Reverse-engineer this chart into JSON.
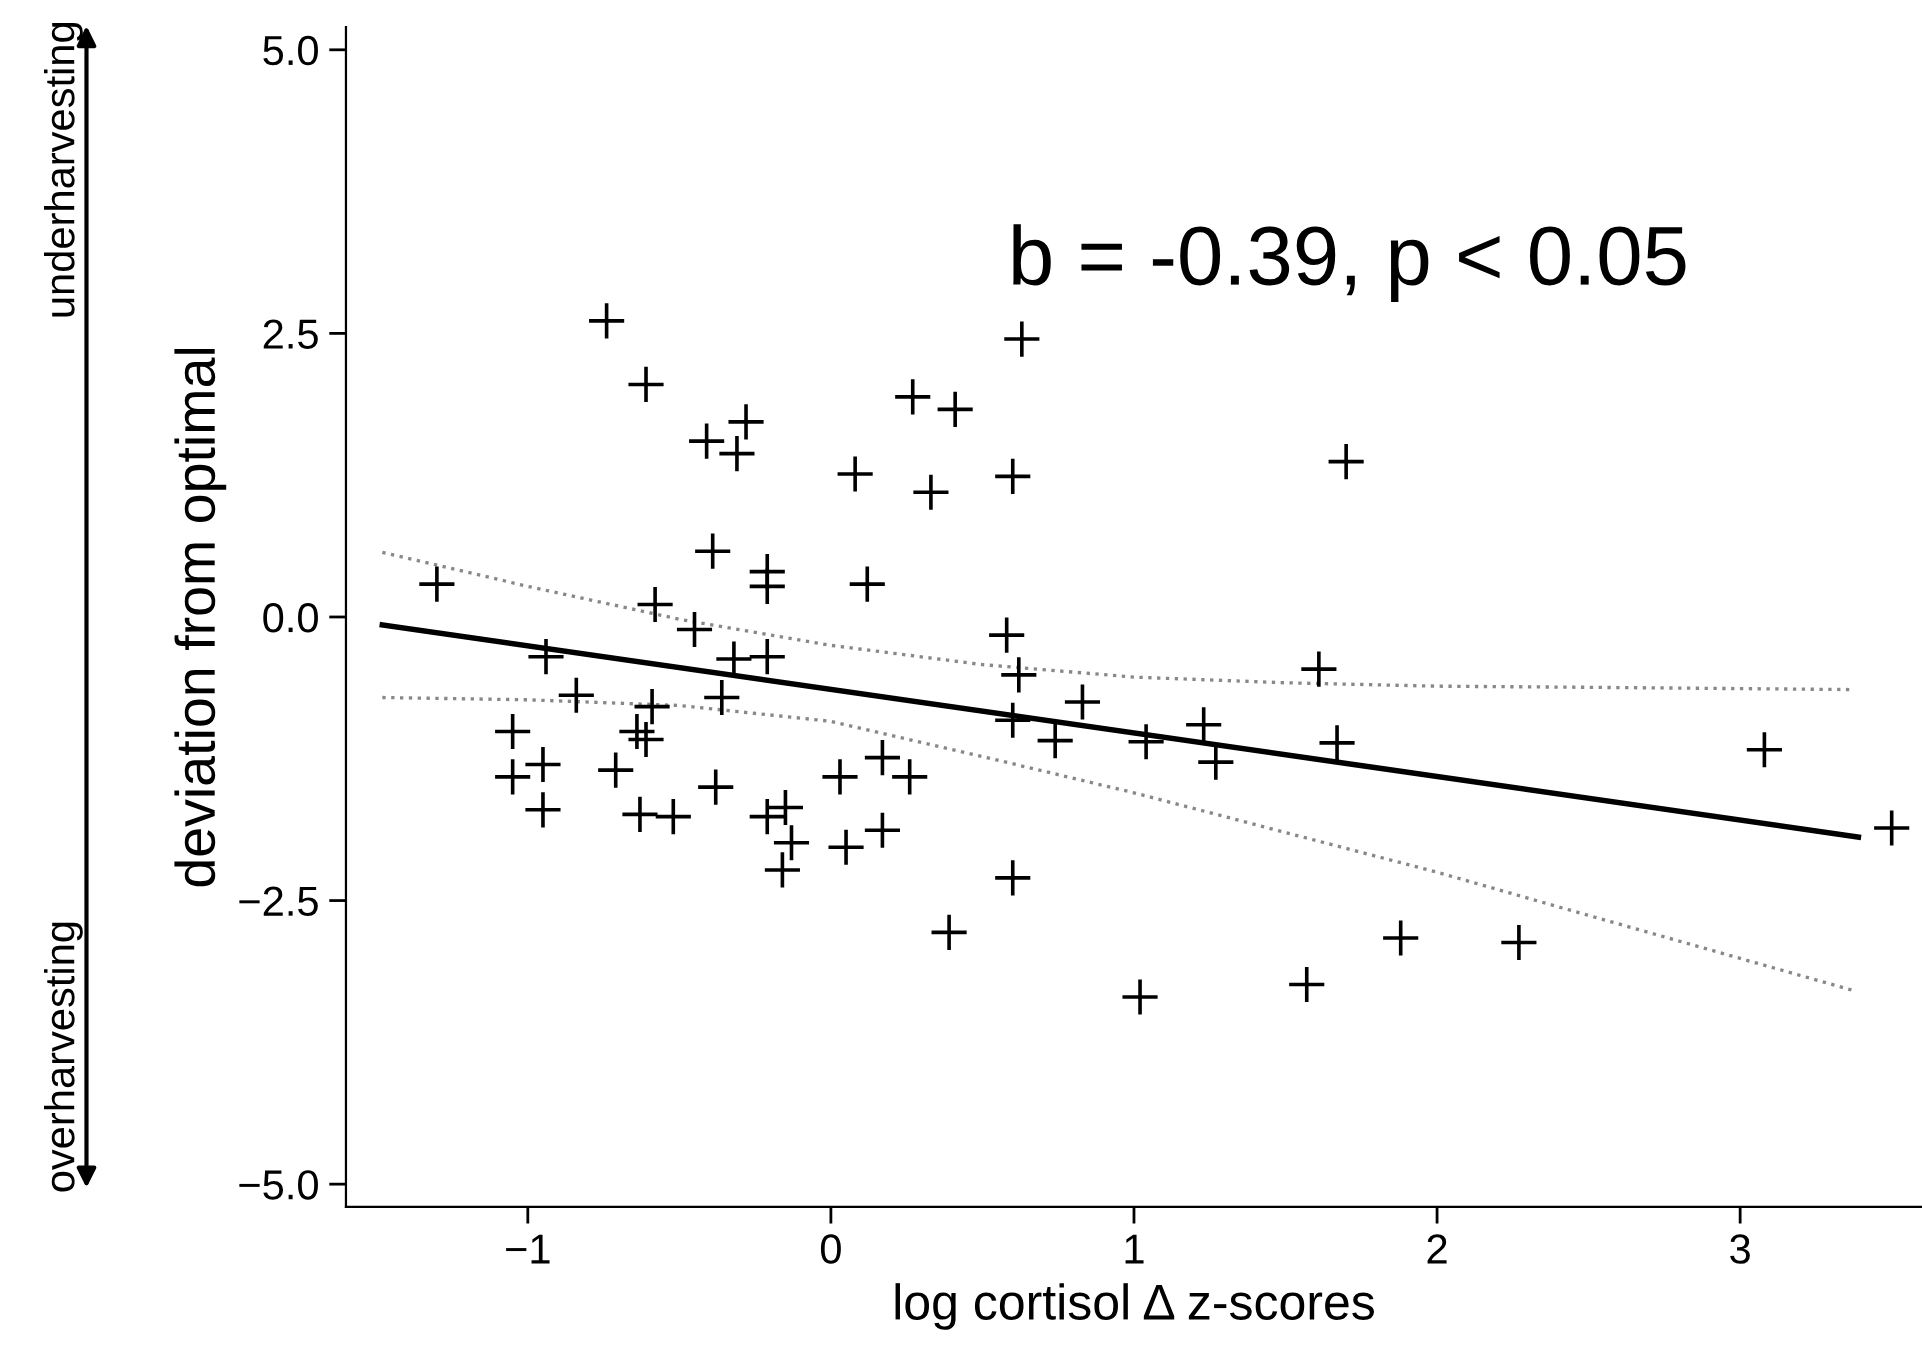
{
  "chart_data": {
    "type": "scatter",
    "xlabel": "log cortisol Δ z-scores",
    "ylabel": "deviation from optimal",
    "annotations": [
      "b = -0.39, p < 0.05",
      "underharvesting",
      "overharvesting"
    ],
    "xlim": [
      -1.6,
      3.6
    ],
    "ylim": [
      -5.2,
      5.2
    ],
    "xticks": [
      {
        "value": -1,
        "label": "−1"
      },
      0,
      1,
      2,
      3
    ],
    "yticks": [
      {
        "value": -5,
        "label": "−5.0"
      },
      {
        "value": -2.5,
        "label": "−2.5"
      },
      {
        "value": 0,
        "label": "0.0"
      },
      {
        "value": 2.5,
        "label": "2.5"
      },
      {
        "value": 5,
        "label": "5.0"
      }
    ],
    "grid": false,
    "legend": false,
    "series": [
      {
        "type": "scatter",
        "color": "#000000",
        "marker": "cross",
        "x": [
          -0.74,
          -0.61,
          0.27,
          0.41,
          -0.28,
          -0.41,
          -0.31,
          0.08,
          0.33,
          -0.39,
          -0.21,
          -0.21,
          0.12,
          -1.3,
          -0.58,
          -0.45,
          -0.94,
          -0.32,
          -0.21,
          -0.84,
          -0.59,
          -0.36,
          -1.05,
          -0.64,
          -0.61,
          -1.05,
          -0.95,
          -0.71,
          -0.95,
          -0.63,
          -0.52,
          -0.38,
          -0.21,
          -0.15,
          -0.13,
          -0.16,
          0.03,
          0.17,
          0.26,
          0.05,
          0.17,
          0.39,
          0.63,
          0.6,
          1.7,
          0.58,
          0.62,
          0.83,
          0.6,
          0.74,
          1.04,
          1.23,
          1.27,
          1.61,
          1.67,
          0.6,
          1.88,
          2.27,
          1.02,
          1.57,
          3.08,
          3.5
        ],
        "values": [
          2.61,
          2.05,
          1.94,
          1.83,
          1.72,
          1.55,
          1.44,
          1.26,
          1.1,
          0.58,
          0.4,
          0.27,
          0.29,
          0.29,
          0.11,
          -0.11,
          -0.35,
          -0.37,
          -0.35,
          -0.69,
          -0.79,
          -0.71,
          -1.01,
          -1.01,
          -1.08,
          -1.41,
          -1.3,
          -1.35,
          -1.7,
          -1.74,
          -1.76,
          -1.5,
          -1.76,
          -1.68,
          -1.99,
          -2.23,
          -1.41,
          -1.24,
          -1.41,
          -2.03,
          -1.88,
          -2.78,
          2.45,
          1.24,
          1.37,
          -0.16,
          -0.51,
          -0.75,
          -0.91,
          -1.09,
          -1.1,
          -0.95,
          -1.28,
          -0.46,
          -1.11,
          -2.3,
          -2.83,
          -2.87,
          -3.35,
          -3.24,
          -1.17,
          -1.86
        ]
      },
      {
        "type": "line",
        "color": "#000000",
        "line_style": "solid",
        "x": [
          -1.48,
          3.39
        ],
        "values": [
          -0.07,
          -1.94
        ]
      },
      {
        "type": "line",
        "color": "#888888",
        "line_style": "dotted",
        "x": [
          -1.48,
          -1,
          -0.5,
          0,
          0.5,
          1,
          1.5,
          2,
          2.5,
          3.37
        ],
        "values": [
          0.57,
          0.27,
          -0.02,
          -0.25,
          -0.42,
          -0.53,
          -0.58,
          -0.61,
          -0.62,
          -0.64
        ]
      },
      {
        "type": "line",
        "color": "#888888",
        "line_style": "dotted",
        "x": [
          -1.48,
          -1,
          -0.5,
          0,
          0.5,
          1,
          1.5,
          2,
          2.38,
          3.37
        ],
        "values": [
          -0.71,
          -0.73,
          -0.78,
          -0.92,
          -1.23,
          -1.55,
          -1.9,
          -2.25,
          -2.54,
          -3.29
        ]
      }
    ]
  }
}
